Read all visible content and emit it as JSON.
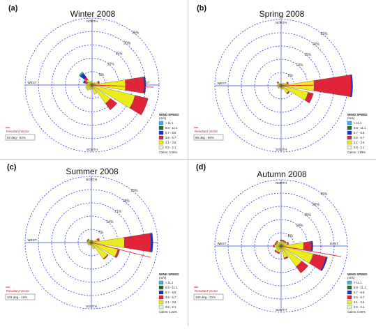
{
  "figure": {
    "accent_color": "#2f3fd8",
    "legend_title": "WIND SPEED",
    "legend_unit": "(m/s)",
    "speed_bins": [
      {
        "label": "> 11.1",
        "color": "#35b7e6"
      },
      {
        "label": "8.8 - 11.1",
        "color": "#1f6f2a"
      },
      {
        "label": "5.7 - 8.8",
        "color": "#1b2fd6"
      },
      {
        "label": "3.6 - 5.7",
        "color": "#e0253a"
      },
      {
        "label": "2.1 - 3.6",
        "color": "#ecec1a"
      },
      {
        "label": "0.5 - 2.1",
        "color": "#e7f4d0"
      }
    ],
    "compass": [
      "NORTH",
      "EAST",
      "SOUTH",
      "WEST"
    ],
    "resultant_label": "Resultant Vector"
  },
  "chart_data": [
    {
      "type": "windrose",
      "panel": "(a)",
      "title": "Winter 2008",
      "ring_labels": [
        "5%",
        "10%",
        "15%",
        "20%",
        "25%"
      ],
      "resultant": "92 deg - 54%",
      "calms": "Calms: 0.00%",
      "directions_deg": [
        90,
        112.5,
        135,
        157.5,
        180,
        202.5,
        225,
        247.5,
        270,
        292.5,
        315,
        337.5,
        0,
        22.5,
        45,
        67.5
      ],
      "series": [
        {
          "speed_bin": "0.5 - 2.1",
          "values": [
            0.5,
            0.5,
            0.5,
            0.5,
            0.5,
            0.4,
            0.6,
            0.5,
            0.5,
            0.4,
            0.6,
            0.4,
            0.4,
            0.3,
            0.3,
            0.4
          ]
        },
        {
          "speed_bin": "2.1 - 3.6",
          "values": [
            12,
            16,
            8,
            3,
            1,
            1.5,
            2,
            2,
            1.5,
            1.5,
            2,
            1,
            1,
            0.5,
            1,
            2
          ]
        },
        {
          "speed_bin": "3.6 - 5.7",
          "values": [
            7,
            5,
            3,
            0,
            0,
            0,
            0,
            0,
            0,
            1,
            1,
            0,
            0,
            0,
            0,
            0.5
          ]
        },
        {
          "speed_bin": "5.7 - 8.8",
          "values": [
            0.5,
            0,
            0,
            0,
            0,
            0,
            0,
            0,
            0,
            0.5,
            1.5,
            0,
            0,
            0,
            0,
            0
          ]
        },
        {
          "speed_bin": "8.8 - 11.1",
          "values": [
            0,
            0,
            0,
            0,
            0,
            0,
            0,
            0,
            0,
            0,
            0.5,
            0,
            0,
            0,
            0,
            0
          ]
        },
        {
          "speed_bin": "> 11.1",
          "values": [
            0,
            0,
            0,
            0,
            0,
            0,
            0,
            0,
            0,
            0,
            0.5,
            0,
            0,
            0,
            0,
            0
          ]
        }
      ],
      "resultant_angle_deg": 92
    },
    {
      "type": "windrose",
      "panel": "(b)",
      "title": "Spring 2008",
      "ring_labels": [
        "5%",
        "10%",
        "15%",
        "20%",
        "25%"
      ],
      "resultant": "89 deg - 69%",
      "calms": "Calms: 1.59%",
      "directions_deg": [
        90,
        112.5,
        135,
        157.5,
        180,
        202.5,
        225,
        247.5,
        270,
        292.5,
        315,
        337.5,
        0,
        22.5,
        45,
        67.5
      ],
      "series": [
        {
          "speed_bin": "0.5 - 2.1",
          "values": [
            0.5,
            0.5,
            0.5,
            0.5,
            0.4,
            0.4,
            0.4,
            0.4,
            0.5,
            0.4,
            0.5,
            0.4,
            0.3,
            0.3,
            0.3,
            0.4
          ]
        },
        {
          "speed_bin": "2.1 - 3.6",
          "values": [
            12,
            10,
            3,
            1,
            0.5,
            0.5,
            1,
            1,
            1,
            1,
            1,
            0.5,
            0.5,
            0.5,
            1,
            2
          ]
        },
        {
          "speed_bin": "3.6 - 5.7",
          "values": [
            14,
            2,
            0.5,
            0,
            0,
            0,
            0,
            0,
            0,
            0,
            0.5,
            0,
            0,
            0,
            0,
            0.5
          ]
        },
        {
          "speed_bin": "5.7 - 8.8",
          "values": [
            0.5,
            0,
            0,
            0,
            0,
            0,
            0,
            0,
            0,
            0,
            0,
            0,
            0,
            0,
            0,
            0
          ]
        },
        {
          "speed_bin": "8.8 - 11.1",
          "values": [
            0,
            0,
            0,
            0,
            0,
            0,
            0,
            0,
            0,
            0,
            0,
            0,
            0,
            0,
            0,
            0
          ]
        },
        {
          "speed_bin": "> 11.1",
          "values": [
            0,
            0,
            0,
            0,
            0,
            0,
            0,
            0,
            0,
            0,
            0,
            0,
            0,
            0,
            0,
            0
          ]
        }
      ],
      "resultant_angle_deg": 89
    },
    {
      "type": "windrose",
      "panel": "(c)",
      "title": "Summer 2008",
      "ring_labels": [
        "7%",
        "14%",
        "21%",
        "28%",
        "35%"
      ],
      "resultant": "104 deg - 10%",
      "calms": "Calms: 1.22%",
      "directions_deg": [
        90,
        112.5,
        135,
        157.5,
        180,
        202.5,
        225,
        247.5,
        270,
        292.5,
        315,
        337.5,
        0,
        22.5,
        45,
        67.5
      ],
      "series": [
        {
          "speed_bin": "0.5 - 2.1",
          "values": [
            0.5,
            0.5,
            0.6,
            0.5,
            0.5,
            0.5,
            0.5,
            0.5,
            0.6,
            0.5,
            0.5,
            0.5,
            0.4,
            0.4,
            0.4,
            0.5
          ]
        },
        {
          "speed_bin": "2.1 - 3.6",
          "values": [
            17,
            14,
            10,
            3,
            1,
            1,
            1.5,
            1.5,
            1.5,
            1.5,
            1.5,
            1,
            1,
            1,
            1,
            3
          ]
        },
        {
          "speed_bin": "3.6 - 5.7",
          "values": [
            14,
            1,
            0.5,
            0,
            0,
            0,
            0,
            0,
            0,
            0.5,
            0.5,
            0,
            0,
            0,
            0,
            1
          ]
        },
        {
          "speed_bin": "5.7 - 8.8",
          "values": [
            1,
            0,
            0,
            0,
            0,
            0,
            0,
            0,
            0,
            0,
            0,
            0,
            0,
            0,
            0,
            0
          ]
        },
        {
          "speed_bin": "8.8 - 11.1",
          "values": [
            0,
            0,
            0,
            0,
            0,
            0,
            0,
            0,
            0,
            0,
            0,
            0,
            0,
            0,
            0,
            0
          ]
        },
        {
          "speed_bin": "> 11.1",
          "values": [
            0,
            0,
            0,
            0,
            0,
            0,
            0,
            0,
            0,
            0,
            0,
            0,
            0,
            0,
            0,
            0
          ]
        }
      ],
      "resultant_angle_deg": 104
    },
    {
      "type": "windrose",
      "panel": "(d)",
      "title": "Autumn 2008",
      "ring_labels": [
        "5%",
        "10%",
        "15%",
        "20%",
        "25%"
      ],
      "resultant": "100 deg - 21%",
      "calms": "Calms: 0.00%",
      "directions_deg": [
        90,
        112.5,
        135,
        157.5,
        180,
        202.5,
        225,
        247.5,
        270,
        292.5,
        315,
        337.5,
        0,
        22.5,
        45,
        67.5
      ],
      "series": [
        {
          "speed_bin": "0.5 - 2.1",
          "values": [
            0.5,
            0.5,
            0.6,
            0.6,
            0.5,
            0.5,
            0.6,
            0.5,
            0.5,
            0.5,
            0.5,
            0.5,
            0.4,
            0.4,
            0.4,
            0.5
          ]
        },
        {
          "speed_bin": "2.1 - 3.6",
          "values": [
            8,
            12,
            9,
            4,
            1.5,
            2,
            2,
            1.5,
            2,
            1.5,
            1.5,
            1,
            1.5,
            1.5,
            1.5,
            2
          ]
        },
        {
          "speed_bin": "3.6 - 5.7",
          "values": [
            3,
            5,
            3,
            0.5,
            0,
            0.5,
            0.5,
            0,
            0.5,
            0.5,
            0.5,
            0,
            0.5,
            0.5,
            0.5,
            0.5
          ]
        },
        {
          "speed_bin": "5.7 - 8.8",
          "values": [
            0.5,
            0.5,
            0,
            0,
            0,
            0,
            0,
            0,
            0,
            0,
            0,
            0,
            0,
            0,
            0,
            0
          ]
        },
        {
          "speed_bin": "8.8 - 11.1",
          "values": [
            0,
            0,
            0,
            0,
            0,
            0,
            0,
            0,
            0,
            0,
            0,
            0,
            0,
            0,
            0,
            0
          ]
        },
        {
          "speed_bin": "> 11.1",
          "values": [
            0,
            0,
            0,
            0,
            0,
            0,
            0,
            0,
            0,
            0,
            0,
            0,
            0,
            0,
            0,
            0
          ]
        }
      ],
      "resultant_angle_deg": 100
    }
  ]
}
